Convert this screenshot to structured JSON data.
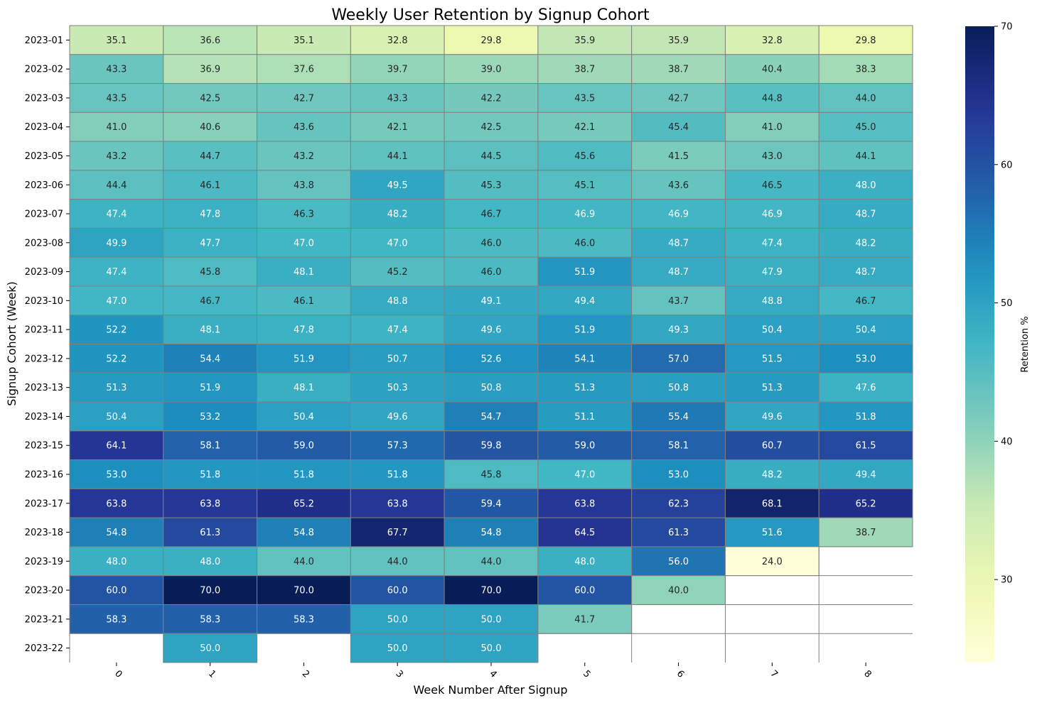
{
  "chart_data": {
    "type": "heatmap",
    "title": "Weekly User Retention by Signup Cohort",
    "xlabel": "Week Number After Signup",
    "ylabel": "Signup Cohort (Week)",
    "colorbar_label": "Retention %",
    "colormap": "YlGnBu",
    "colorbar_range": [
      24,
      70
    ],
    "colorbar_ticks": [
      30,
      40,
      50,
      60,
      70
    ],
    "cell_border_color": "#808080",
    "x": [
      "0",
      "1",
      "2",
      "3",
      "4",
      "5",
      "6",
      "7",
      "8"
    ],
    "y": [
      "2023-01",
      "2023-02",
      "2023-03",
      "2023-04",
      "2023-05",
      "2023-06",
      "2023-07",
      "2023-08",
      "2023-09",
      "2023-10",
      "2023-11",
      "2023-12",
      "2023-13",
      "2023-14",
      "2023-15",
      "2023-16",
      "2023-17",
      "2023-18",
      "2023-19",
      "2023-20",
      "2023-21",
      "2023-22"
    ],
    "values": [
      [
        35.1,
        36.6,
        35.1,
        32.8,
        29.8,
        35.9,
        35.9,
        32.8,
        29.8
      ],
      [
        43.3,
        36.9,
        37.6,
        39.7,
        39.0,
        38.7,
        38.7,
        40.4,
        38.3
      ],
      [
        43.5,
        42.5,
        42.7,
        43.3,
        42.2,
        43.5,
        42.7,
        44.8,
        44.0
      ],
      [
        41.0,
        40.6,
        43.6,
        42.1,
        42.5,
        42.1,
        45.4,
        41.0,
        45.0
      ],
      [
        43.2,
        44.7,
        43.2,
        44.1,
        44.5,
        45.6,
        41.5,
        43.0,
        44.1
      ],
      [
        44.4,
        46.1,
        43.8,
        49.5,
        45.3,
        45.1,
        43.6,
        46.5,
        48.0
      ],
      [
        47.4,
        47.8,
        46.3,
        48.2,
        46.7,
        46.9,
        46.9,
        46.9,
        48.7
      ],
      [
        49.9,
        47.7,
        47.0,
        47.0,
        46.0,
        46.0,
        48.7,
        47.4,
        48.2
      ],
      [
        47.4,
        45.8,
        48.1,
        45.2,
        46.0,
        51.9,
        48.7,
        47.9,
        48.7
      ],
      [
        47.0,
        46.7,
        46.1,
        48.8,
        49.1,
        49.4,
        43.7,
        48.8,
        46.7
      ],
      [
        52.2,
        48.1,
        47.8,
        47.4,
        49.6,
        51.9,
        49.3,
        50.4,
        50.4
      ],
      [
        52.2,
        54.4,
        51.9,
        50.7,
        52.6,
        54.1,
        57.0,
        51.5,
        53.0
      ],
      [
        51.3,
        51.9,
        48.1,
        50.3,
        50.8,
        51.3,
        50.8,
        51.3,
        47.6
      ],
      [
        50.4,
        53.2,
        50.4,
        49.6,
        54.7,
        51.1,
        55.4,
        49.6,
        51.8
      ],
      [
        64.1,
        58.1,
        59.0,
        57.3,
        59.8,
        59.0,
        58.1,
        60.7,
        61.5
      ],
      [
        53.0,
        51.8,
        51.8,
        51.8,
        45.8,
        47.0,
        53.0,
        48.2,
        49.4
      ],
      [
        63.8,
        63.8,
        65.2,
        63.8,
        59.4,
        63.8,
        62.3,
        68.1,
        65.2
      ],
      [
        54.8,
        61.3,
        54.8,
        67.7,
        54.8,
        64.5,
        61.3,
        51.6,
        38.7
      ],
      [
        48.0,
        48.0,
        44.0,
        44.0,
        44.0,
        48.0,
        56.0,
        24.0,
        null
      ],
      [
        60.0,
        70.0,
        70.0,
        60.0,
        70.0,
        60.0,
        40.0,
        null,
        null
      ],
      [
        58.3,
        58.3,
        58.3,
        50.0,
        50.0,
        41.7,
        null,
        null,
        null
      ],
      [
        null,
        50.0,
        null,
        50.0,
        50.0,
        null,
        null,
        null,
        null
      ]
    ]
  }
}
